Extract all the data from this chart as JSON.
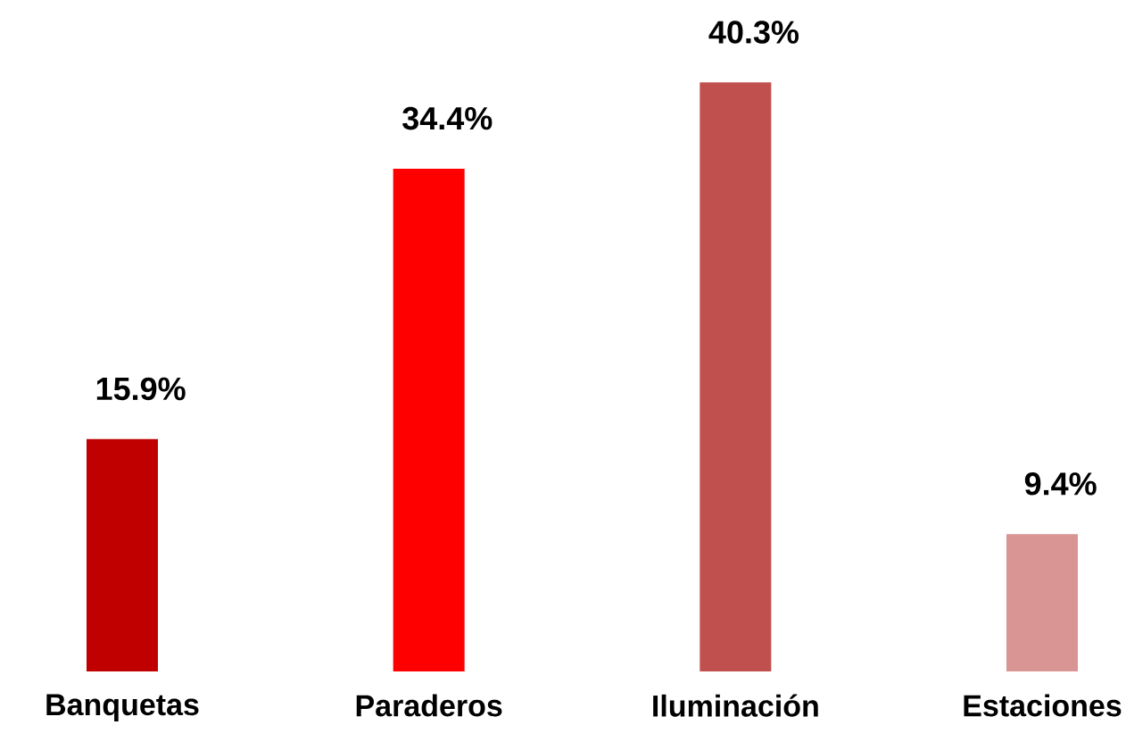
{
  "chart_data": {
    "type": "bar",
    "categories": [
      "Banquetas",
      "Paraderos",
      "Iluminación",
      "Estaciones"
    ],
    "values": [
      15.9,
      34.4,
      40.3,
      9.4
    ],
    "colors": [
      "#c00000",
      "#ff0000",
      "#c0504d",
      "#d99594"
    ],
    "value_labels": [
      "15.9%",
      "34.4%",
      "40.3%",
      "9.4%"
    ]
  }
}
